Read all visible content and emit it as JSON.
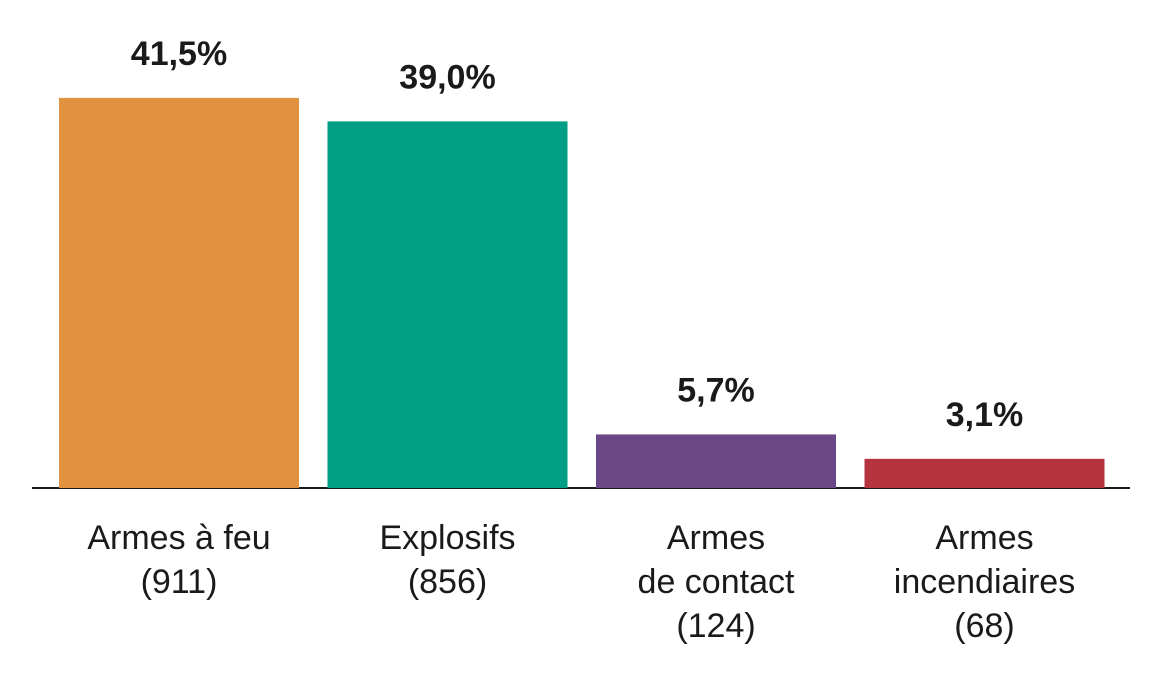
{
  "chart_data": {
    "type": "bar",
    "categories": [
      [
        "Armes à feu",
        "(911)"
      ],
      [
        "Explosifs",
        "(856)"
      ],
      [
        "Armes",
        "de contact",
        "(124)"
      ],
      [
        "Armes",
        "incendiaires",
        "(68)"
      ]
    ],
    "values": [
      41.5,
      39.0,
      5.7,
      3.1
    ],
    "value_labels": [
      "41,5%",
      "39,0%",
      "5,7%",
      "3,1%"
    ],
    "colors": [
      "#e0923f",
      "#009e84",
      "#6b4785",
      "#b5333d"
    ]
  }
}
